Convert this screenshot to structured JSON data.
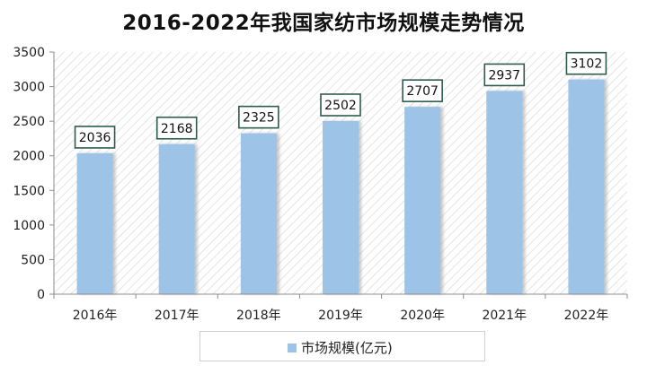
{
  "chart_data": {
    "type": "bar",
    "title": "2016-2022年我国家纺市场规模走势情况",
    "categories": [
      "2016年",
      "2017年",
      "2018年",
      "2019年",
      "2020年",
      "2021年",
      "2022年"
    ],
    "series": [
      {
        "name": "市场规模(亿元)",
        "values": [
          2036,
          2168,
          2325,
          2502,
          2707,
          2937,
          3102
        ]
      }
    ],
    "ylim": [
      0,
      3500
    ],
    "yticks": [
      0,
      500,
      1000,
      1500,
      2000,
      2500,
      3000,
      3500
    ],
    "grid": false,
    "legend": "bottom",
    "bar_color": "#9dc3e6",
    "data_labels": true
  }
}
